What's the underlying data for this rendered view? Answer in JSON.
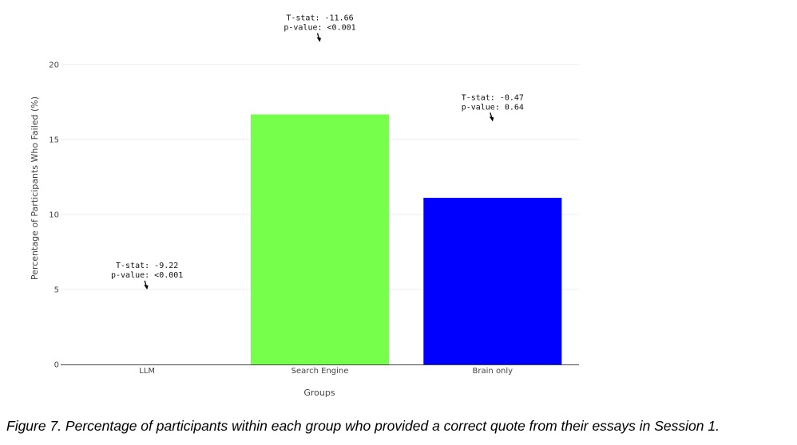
{
  "chart_data": {
    "type": "bar",
    "xlabel": "Groups",
    "ylabel": "Percentage of Participants Who Failed (%)",
    "categories": [
      "LLM",
      "Search Engine",
      "Brain only"
    ],
    "values": [
      0,
      16.67,
      11.11
    ],
    "colors": [
      "#c8c8c8",
      "#76ff4b",
      "#0000ff"
    ],
    "ylim": [
      0,
      21
    ],
    "yticks": [
      0,
      5,
      10,
      15,
      20
    ],
    "grid": true,
    "annotations": [
      {
        "category": "LLM",
        "y": 5,
        "line1": "T-stat: -9.22",
        "line2": "p-value: <0.001"
      },
      {
        "category": "Search Engine",
        "y": 21.5,
        "line1": "T-stat: -11.66",
        "line2": "p-value: <0.001"
      },
      {
        "category": "Brain only",
        "y": 16.2,
        "line1": "T-stat: -0.47",
        "line2": "p-value: 0.64"
      }
    ]
  },
  "caption": "Figure 7. Percentage of participants within each group who provided a correct quote from their essays in Session 1."
}
